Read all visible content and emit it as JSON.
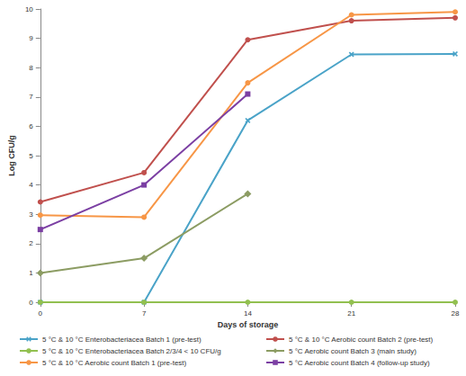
{
  "chart_data": {
    "type": "line",
    "xlabel": "Days of storage",
    "ylabel": "Log CFU/g",
    "x": [
      0,
      7,
      14,
      21,
      28
    ],
    "xlim": [
      0,
      28
    ],
    "xticks": [
      0,
      7,
      14,
      21,
      28
    ],
    "ylim": [
      0,
      10
    ],
    "yticks": [
      0,
      1,
      2,
      3,
      4,
      5,
      6,
      7,
      8,
      9,
      10
    ],
    "grid": false,
    "legend": "bottom",
    "series": [
      {
        "name": "5 °C & 10 °C Enterobacteriacea Batch 1 (pre-test)",
        "color": "#4aa3c8",
        "marker": "x",
        "values": [
          0,
          0,
          6.2,
          8.45,
          8.47
        ]
      },
      {
        "name": "5 °C & 10 °C Aerobic count Batch 2 (pre-test)",
        "color": "#c0504d",
        "marker": "circle",
        "values": [
          3.42,
          4.42,
          8.95,
          9.6,
          9.7
        ]
      },
      {
        "name": "5 °C & 10 °C Enterobacteriacea Batch 2/3/4 < 10 CFU/g",
        "color": "#92c050",
        "marker": "circle",
        "values": [
          0,
          0,
          0,
          0,
          0
        ]
      },
      {
        "name": "5 °C Aerobic count Batch 3 (main study)",
        "color": "#8c9c63",
        "marker": "diamond",
        "values": [
          1.0,
          1.5,
          3.7,
          null,
          null
        ]
      },
      {
        "name": "5 °C & 10 °C Aerobic count Batch 1 (pre-test)",
        "color": "#f79646",
        "marker": "circle",
        "values": [
          2.97,
          2.9,
          7.48,
          9.8,
          9.9
        ]
      },
      {
        "name": "5 °C Aerobic count Batch 4 (follow-up study)",
        "color": "#7b3fa3",
        "marker": "square",
        "values": [
          2.48,
          4.0,
          7.1,
          null,
          null
        ]
      }
    ]
  }
}
